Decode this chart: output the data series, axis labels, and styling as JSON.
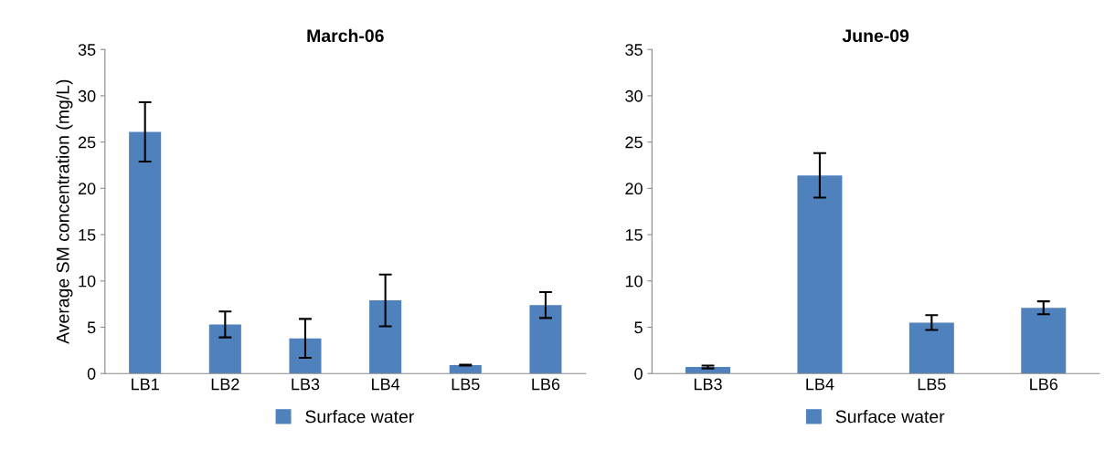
{
  "chart_data": [
    {
      "type": "bar",
      "title": "March-06",
      "ylabel": "Average SM concentration (mg/L)",
      "categories": [
        "LB1",
        "LB2",
        "LB3",
        "LB4",
        "LB5",
        "LB6"
      ],
      "series": [
        {
          "name": "Surface water",
          "color": "#4f81bd",
          "values": [
            26.1,
            5.3,
            3.8,
            7.9,
            0.9,
            7.4
          ],
          "errors": [
            3.2,
            1.4,
            2.1,
            2.8,
            0.05,
            1.4
          ]
        }
      ],
      "ylim": [
        0,
        35
      ],
      "yticks": [
        0,
        5,
        10,
        15,
        20,
        25,
        30,
        35
      ],
      "grid": false,
      "legend": "bottom"
    },
    {
      "type": "bar",
      "title": "June-09",
      "categories": [
        "LB3",
        "LB4",
        "LB5",
        "LB6"
      ],
      "series": [
        {
          "name": "Surface water",
          "color": "#4f81bd",
          "values": [
            0.7,
            21.4,
            5.5,
            7.1
          ],
          "errors": [
            0.15,
            2.4,
            0.8,
            0.7
          ]
        }
      ],
      "ylim": [
        0,
        35
      ],
      "yticks": [
        0,
        5,
        10,
        15,
        20,
        25,
        30,
        35
      ],
      "grid": false,
      "legend": "bottom"
    }
  ]
}
